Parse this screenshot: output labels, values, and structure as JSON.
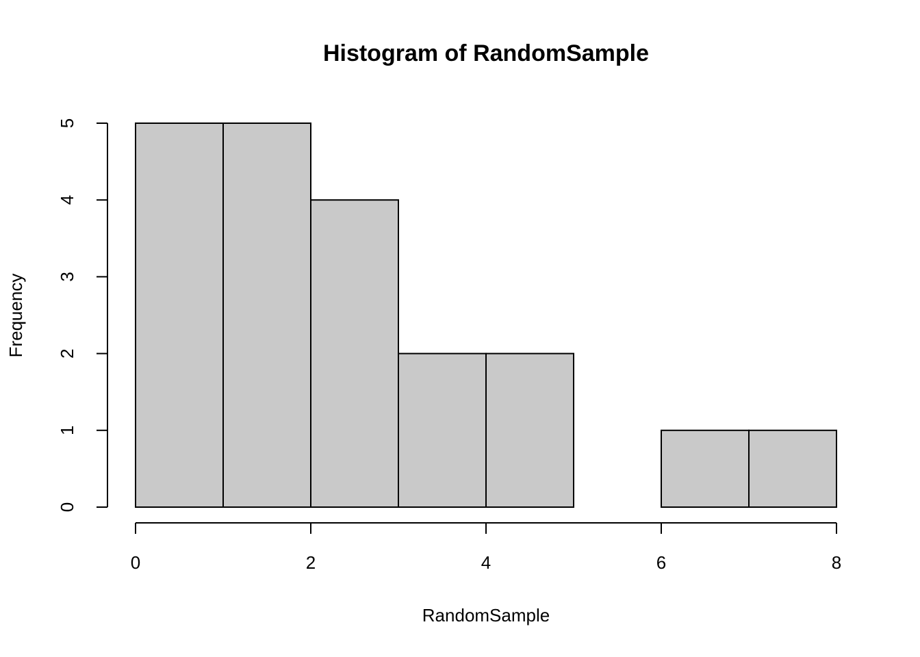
{
  "chart_data": {
    "type": "histogram",
    "title": "Histogram of RandomSample",
    "xlabel": "RandomSample",
    "ylabel": "Frequency",
    "bins": [
      0,
      1,
      2,
      3,
      4,
      5,
      6,
      7,
      8
    ],
    "values": [
      5,
      5,
      4,
      2,
      2,
      0,
      1,
      1
    ],
    "color": "#c9c9c9",
    "xlim": [
      0,
      8
    ],
    "xticks": [
      0,
      2,
      4,
      6,
      8
    ],
    "ylim": [
      0,
      5
    ],
    "yticks": [
      0,
      1,
      2,
      3,
      4,
      5
    ],
    "grid": false
  }
}
